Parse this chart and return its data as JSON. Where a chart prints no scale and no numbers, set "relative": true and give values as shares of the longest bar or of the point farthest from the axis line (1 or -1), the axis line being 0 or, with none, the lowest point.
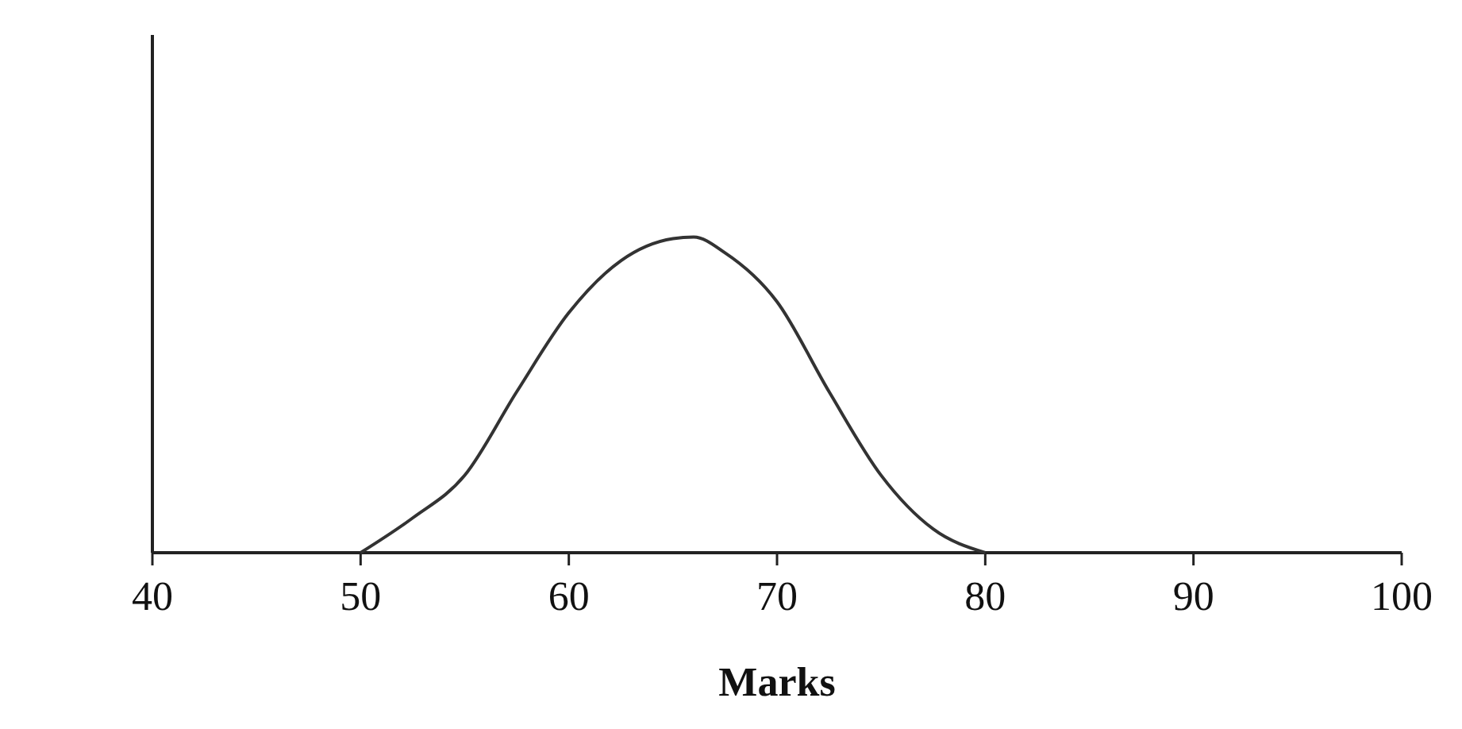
{
  "chart_data": {
    "type": "line",
    "xlabel": "Marks",
    "relative": true,
    "xlim": [
      40,
      100
    ],
    "xticks": [
      40,
      50,
      60,
      70,
      80,
      90,
      100
    ],
    "series": [
      {
        "color": "#333333",
        "x": [
          50,
          52.5,
          55,
          57.5,
          60,
          62.5,
          65,
          66,
          67.5,
          70,
          72.5,
          75,
          77.5,
          80
        ],
        "values": [
          0,
          0.11,
          0.245,
          0.51,
          0.76,
          0.925,
          0.995,
          1,
          0.95,
          0.795,
          0.51,
          0.245,
          0.075,
          0
        ]
      }
    ]
  }
}
